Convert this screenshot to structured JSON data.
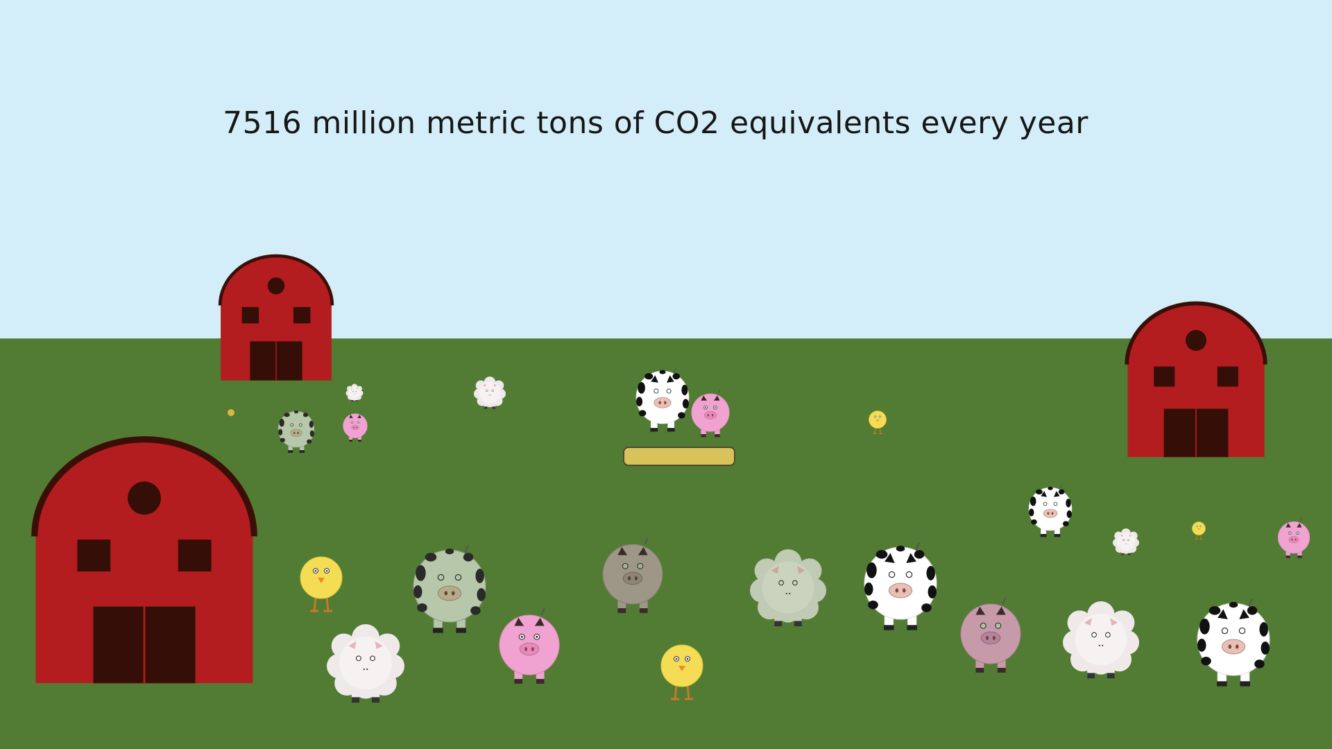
{
  "headline": "7516 million metric tons of CO2 equivalents every year",
  "colors": {
    "sky": "#d3eef8",
    "grass": "#527c34",
    "barn": "#b31d20",
    "barn_roof": "#3a0f08",
    "barn_door": "#360e08",
    "trough": "#d8c35a"
  },
  "scene": {
    "barns": 3,
    "animals": [
      "cow",
      "pig",
      "sheep",
      "chick",
      "sick-cow",
      "sick-pig",
      "sick-sheep",
      "sick-pig-brown"
    ],
    "feed_trough": "yellow-feed-trough"
  }
}
